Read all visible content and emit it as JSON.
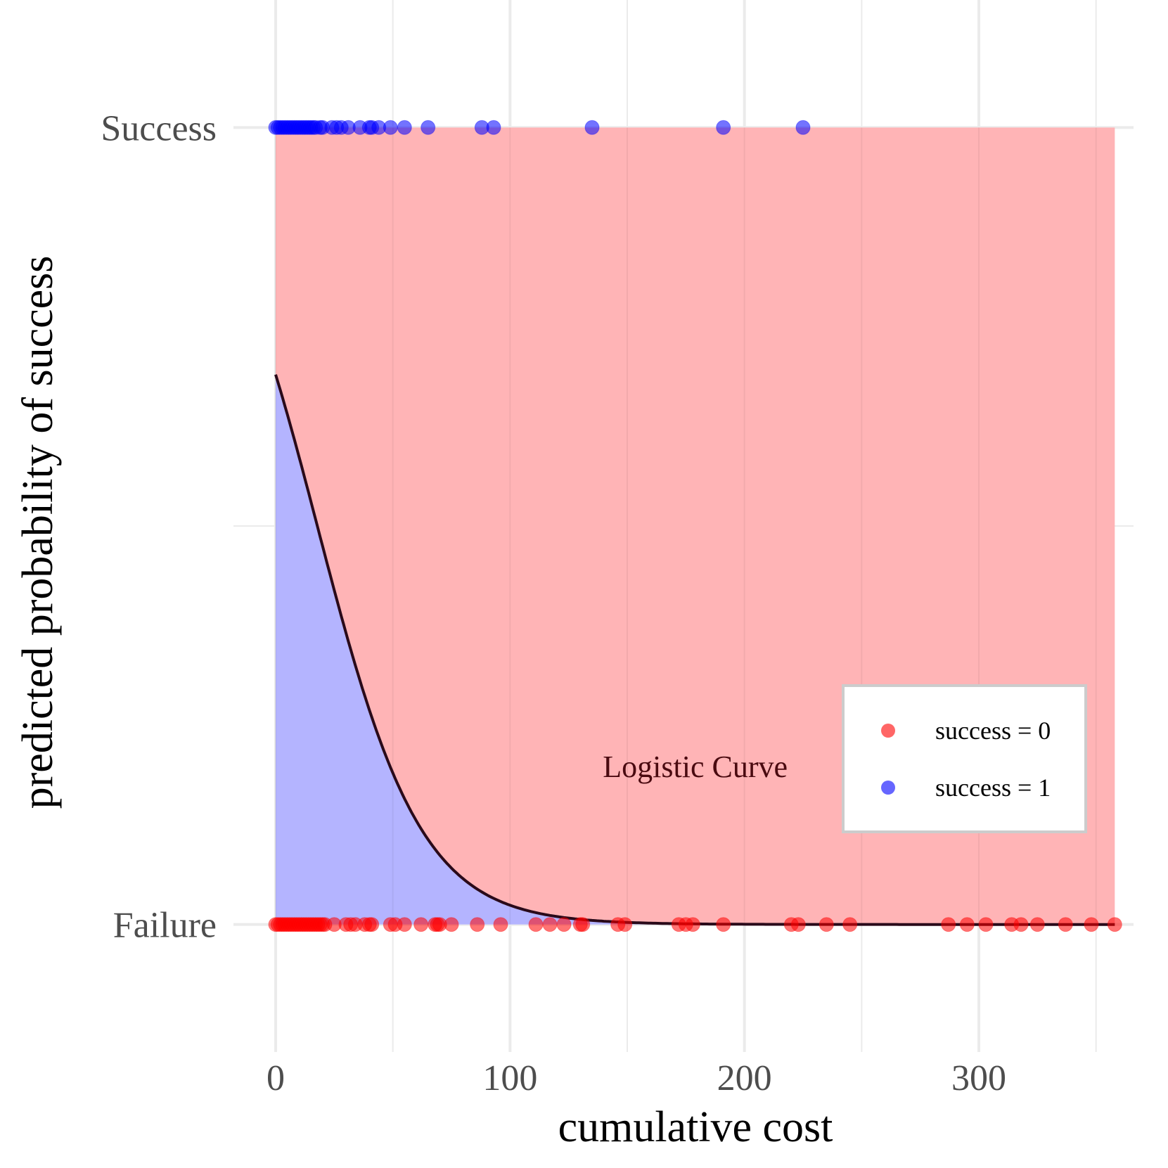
{
  "chart_data": {
    "type": "scatter",
    "xlabel": "cumulative cost",
    "ylabel": "predicted probability of success",
    "xlim": [
      -18,
      366
    ],
    "ylim": [
      -0.16,
      1.16
    ],
    "x_ticks": [
      0,
      100,
      200,
      300
    ],
    "x_tick_labels": [
      "0",
      "100",
      "200",
      "300"
    ],
    "y_ticks": [
      0,
      1
    ],
    "y_tick_labels": [
      "Failure",
      "Success"
    ],
    "grid": true,
    "logistic": {
      "intercept": 0.8,
      "slope": -0.045,
      "x_max": 358
    },
    "annotation": {
      "text": "Logistic Curve",
      "x": 179,
      "y": 0.185,
      "color": "#4a0a10"
    },
    "fill_colors": {
      "above": "#ffb3b5",
      "below": "#b3b3ff"
    },
    "curve_color": "#2a0a1a",
    "legend": {
      "position": "bottom-right",
      "entries": [
        {
          "label": "success = 0",
          "color": "#ff0000"
        },
        {
          "label": "success = 1",
          "color": "#0000ff"
        }
      ]
    },
    "series": [
      {
        "name": "success = 0",
        "y": 0,
        "color": "#ff0000",
        "x": [
          0,
          1,
          2,
          3,
          4,
          5,
          6,
          7,
          8,
          9,
          10,
          11,
          12,
          13,
          14,
          15,
          16,
          17,
          18,
          19,
          20,
          21,
          25,
          30,
          32,
          34,
          38,
          40,
          41,
          49,
          51,
          55,
          62,
          68,
          69,
          70,
          75,
          86,
          96,
          111,
          117,
          123,
          130,
          131,
          146,
          149,
          172,
          175,
          178,
          191,
          220,
          223,
          235,
          245,
          287,
          295,
          303,
          314,
          318,
          325,
          337,
          348,
          358
        ]
      },
      {
        "name": "success = 1",
        "y": 1,
        "color": "#0000ff",
        "x": [
          0,
          1,
          2,
          3,
          4,
          5,
          6,
          7,
          8,
          9,
          10,
          11,
          12,
          13,
          14,
          15,
          16,
          17,
          19,
          20,
          24,
          26,
          28,
          31,
          36,
          40,
          41,
          44,
          49,
          55,
          65,
          88,
          93,
          135,
          191,
          225
        ]
      }
    ]
  }
}
